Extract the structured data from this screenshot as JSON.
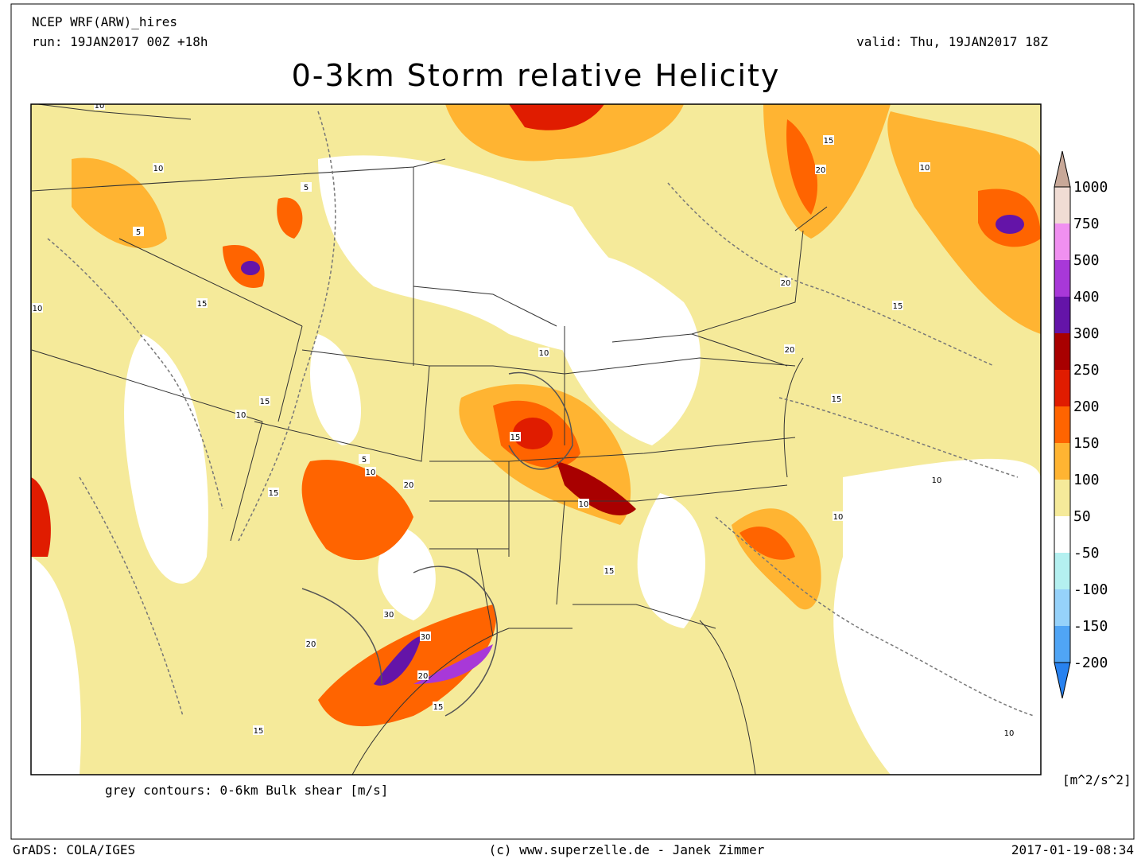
{
  "header": {
    "model": "NCEP WRF(ARW)_hires",
    "run": "run: 19JAN2017 00Z +18h",
    "valid": "valid: Thu, 19JAN2017 18Z",
    "title": "0-3km Storm relative Helicity"
  },
  "colorbar": {
    "unit": "[m^2/s^2]",
    "labels": [
      "1000",
      "750",
      "500",
      "400",
      "300",
      "250",
      "200",
      "150",
      "100",
      "50",
      "-50",
      "-100",
      "-150",
      "-200"
    ],
    "colors": [
      "#c8a898",
      "#f0dcd4",
      "#f090f0",
      "#a838d8",
      "#6414a8",
      "#a80000",
      "#e01c00",
      "#ff6400",
      "#ffb432",
      "#f5ea9a",
      "#ffffff",
      "#b4f0f0",
      "#96d2fa",
      "#50a5f5",
      "#2882f0"
    ]
  },
  "map": {
    "note": "grey contours: 0-6km Bulk shear [m/s]",
    "contour_labels": [
      "10",
      "5",
      "10",
      "5",
      "10",
      "15",
      "10",
      "15",
      "5",
      "15",
      "10",
      "20",
      "15",
      "10",
      "20",
      "15",
      "20",
      "15",
      "10",
      "30",
      "20",
      "30",
      "20",
      "15",
      "15",
      "10",
      "15",
      "10",
      "20",
      "15",
      "10",
      "10"
    ]
  },
  "footer": {
    "left": "GrADS: COLA/IGES",
    "center": "(c) www.superzelle.de - Janek Zimmer",
    "right": "2017-01-19-08:34"
  }
}
